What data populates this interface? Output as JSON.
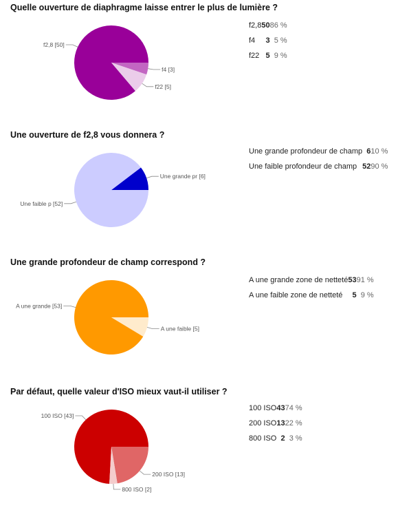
{
  "chart_data": [
    {
      "type": "pie",
      "title": "Quelle ouverture de diaphragme laisse entrer le plus de lumière ?",
      "slices": [
        {
          "label": "f2,8",
          "pie_label": "f2,8 [50]",
          "count": 50,
          "percent": "86 %",
          "color": "#990099"
        },
        {
          "label": "f4",
          "pie_label": "f4 [3]",
          "count": 3,
          "percent": "5 %",
          "color": "#c266c2"
        },
        {
          "label": "f22",
          "pie_label": "f22 [5]",
          "count": 5,
          "percent": "9 %",
          "color": "#ebccea"
        }
      ]
    },
    {
      "type": "pie",
      "title": "Une ouverture de f2,8 vous donnera ?",
      "slices": [
        {
          "label": "Une grande profondeur de champ",
          "pie_label": "Une grande pr [6]",
          "count": 6,
          "percent": "10 %",
          "color": "#0000cc"
        },
        {
          "label": "Une faible profondeur de champ",
          "pie_label": "Une faible p [52]",
          "count": 52,
          "percent": "90 %",
          "color": "#ccccff"
        }
      ]
    },
    {
      "type": "pie",
      "title": "Une grande profondeur de champ correspond ?",
      "slices": [
        {
          "label": "A une grande zone de netteté",
          "pie_label": "A une grande [53]",
          "count": 53,
          "percent": "91 %",
          "color": "#ff9900"
        },
        {
          "label": "A une faible zone de netteté",
          "pie_label": "A une faible  [5]",
          "count": 5,
          "percent": "9 %",
          "color": "#ffebcc"
        }
      ]
    },
    {
      "type": "pie",
      "title": "Par défaut, quelle valeur d'ISO mieux vaut-il utiliser ?",
      "slices": [
        {
          "label": "100 ISO",
          "pie_label": "100 ISO [43]",
          "count": 43,
          "percent": "74 %",
          "color": "#cc0000"
        },
        {
          "label": "200 ISO",
          "pie_label": "200 ISO [13]",
          "count": 13,
          "percent": "22 %",
          "color": "#e06666"
        },
        {
          "label": "800 ISO",
          "pie_label": "800 ISO [2]",
          "count": 2,
          "percent": "3 %",
          "color": "#f4cccc"
        }
      ]
    }
  ]
}
